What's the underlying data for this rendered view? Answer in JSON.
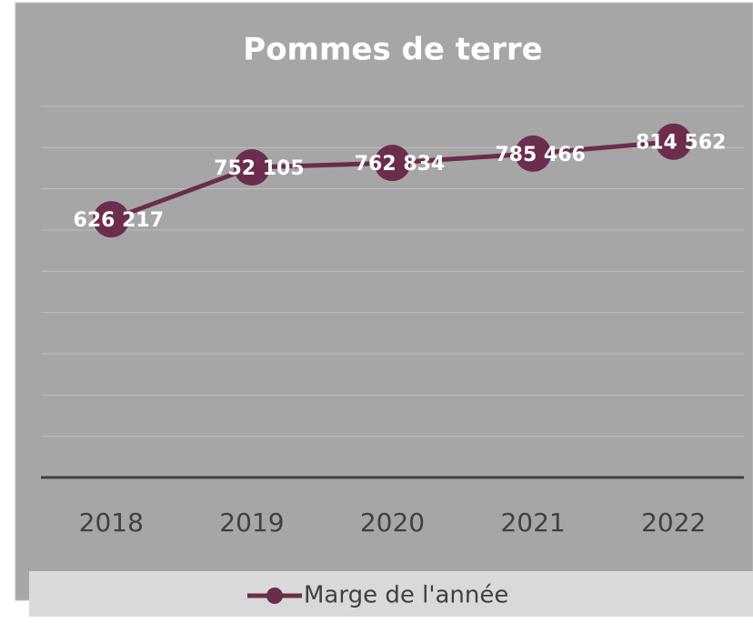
{
  "chart_data": {
    "type": "line",
    "title": "Pommes de terre",
    "categories": [
      "2018",
      "2019",
      "2020",
      "2021",
      "2022"
    ],
    "series": [
      {
        "name": "Marge de l'année",
        "color": "#6b2d4b",
        "values": [
          626217,
          752105,
          762834,
          785466,
          814562
        ],
        "value_labels": [
          "626 217",
          "752 105",
          "762 834",
          "785 466",
          "814 562"
        ]
      }
    ],
    "ylim": [
      0,
      900000
    ],
    "yticks": [
      0,
      100000,
      200000,
      300000,
      400000,
      500000,
      600000,
      700000,
      800000,
      900000
    ],
    "grid": true,
    "legend": "bottom"
  }
}
